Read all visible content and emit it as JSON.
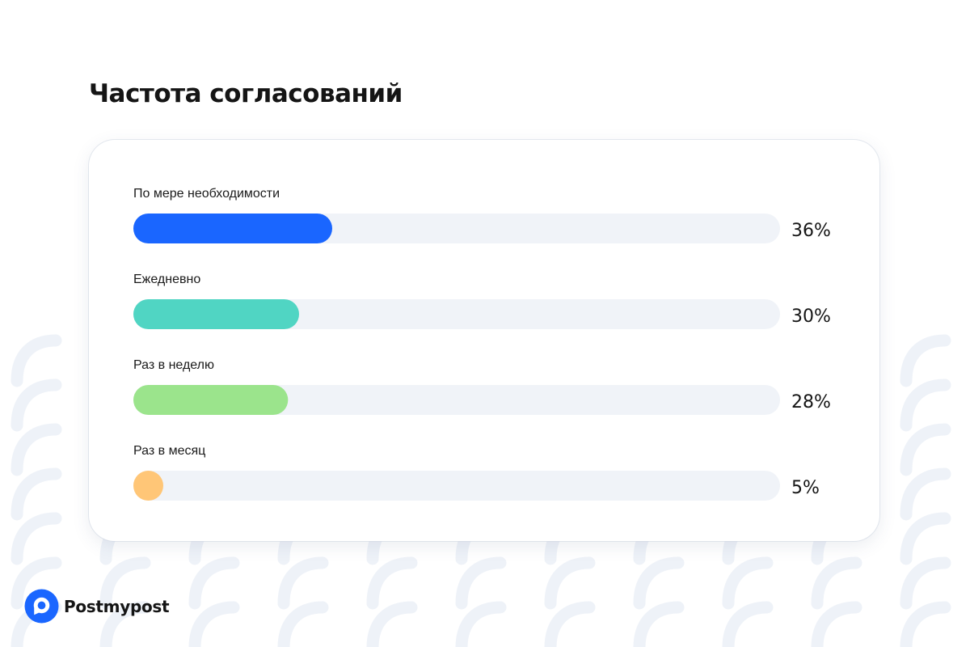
{
  "page": {
    "title": "Частота согласований"
  },
  "brand": {
    "name": "Postmypost",
    "icon": "postmypost-logo-icon",
    "color": "#1A66FF"
  },
  "chart_data": {
    "type": "bar",
    "orientation": "horizontal",
    "xlim": [
      0,
      100
    ],
    "categories": [
      "По мере необходимости",
      "Ежедневно",
      "Раз в неделю",
      "Раз в месяц"
    ],
    "values": [
      36,
      30,
      28,
      5
    ],
    "value_labels": [
      "36%",
      "30%",
      "28%",
      "5%"
    ],
    "colors": [
      "#1A66FF",
      "#50D5C3",
      "#9BE48C",
      "#FFC677"
    ],
    "track_color": "#F0F3F8",
    "grid": false
  }
}
